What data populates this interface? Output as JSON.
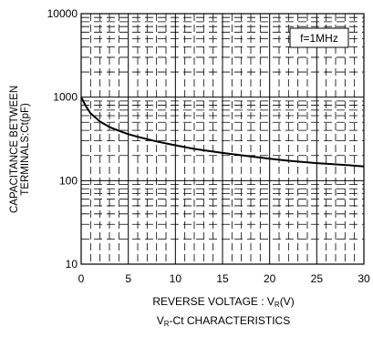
{
  "chart_data": {
    "type": "line",
    "ylabel_line1": "CAPACITANCE BETWEEN",
    "ylabel_line2": "TERMINALS:Ct(pF)",
    "xlabel_main": "REVERSE VOLTAGE : V",
    "xlabel_sub": "R",
    "xlabel_unit": "(V)",
    "caption_main": "V",
    "caption_sub": "R",
    "caption_rest": "-Ct CHARACTERISTICS",
    "annotation": "f=1MHz",
    "x_scale": "linear",
    "y_scale": "log",
    "xlim": [
      0,
      30
    ],
    "ylim": [
      10,
      10000
    ],
    "x_ticks": [
      "0",
      "5",
      "10",
      "15",
      "20",
      "25",
      "30"
    ],
    "y_ticks": [
      "10",
      "100",
      "1000",
      "10000"
    ],
    "grid": true,
    "series": [
      {
        "x": [
          0,
          0.5,
          1,
          2,
          3,
          4,
          5,
          6,
          8,
          10,
          12,
          15,
          18,
          20,
          22,
          25,
          28,
          30
        ],
        "y": [
          1000,
          780,
          640,
          510,
          440,
          395,
          360,
          335,
          295,
          265,
          240,
          215,
          195,
          183,
          173,
          162,
          154,
          148
        ]
      }
    ]
  }
}
